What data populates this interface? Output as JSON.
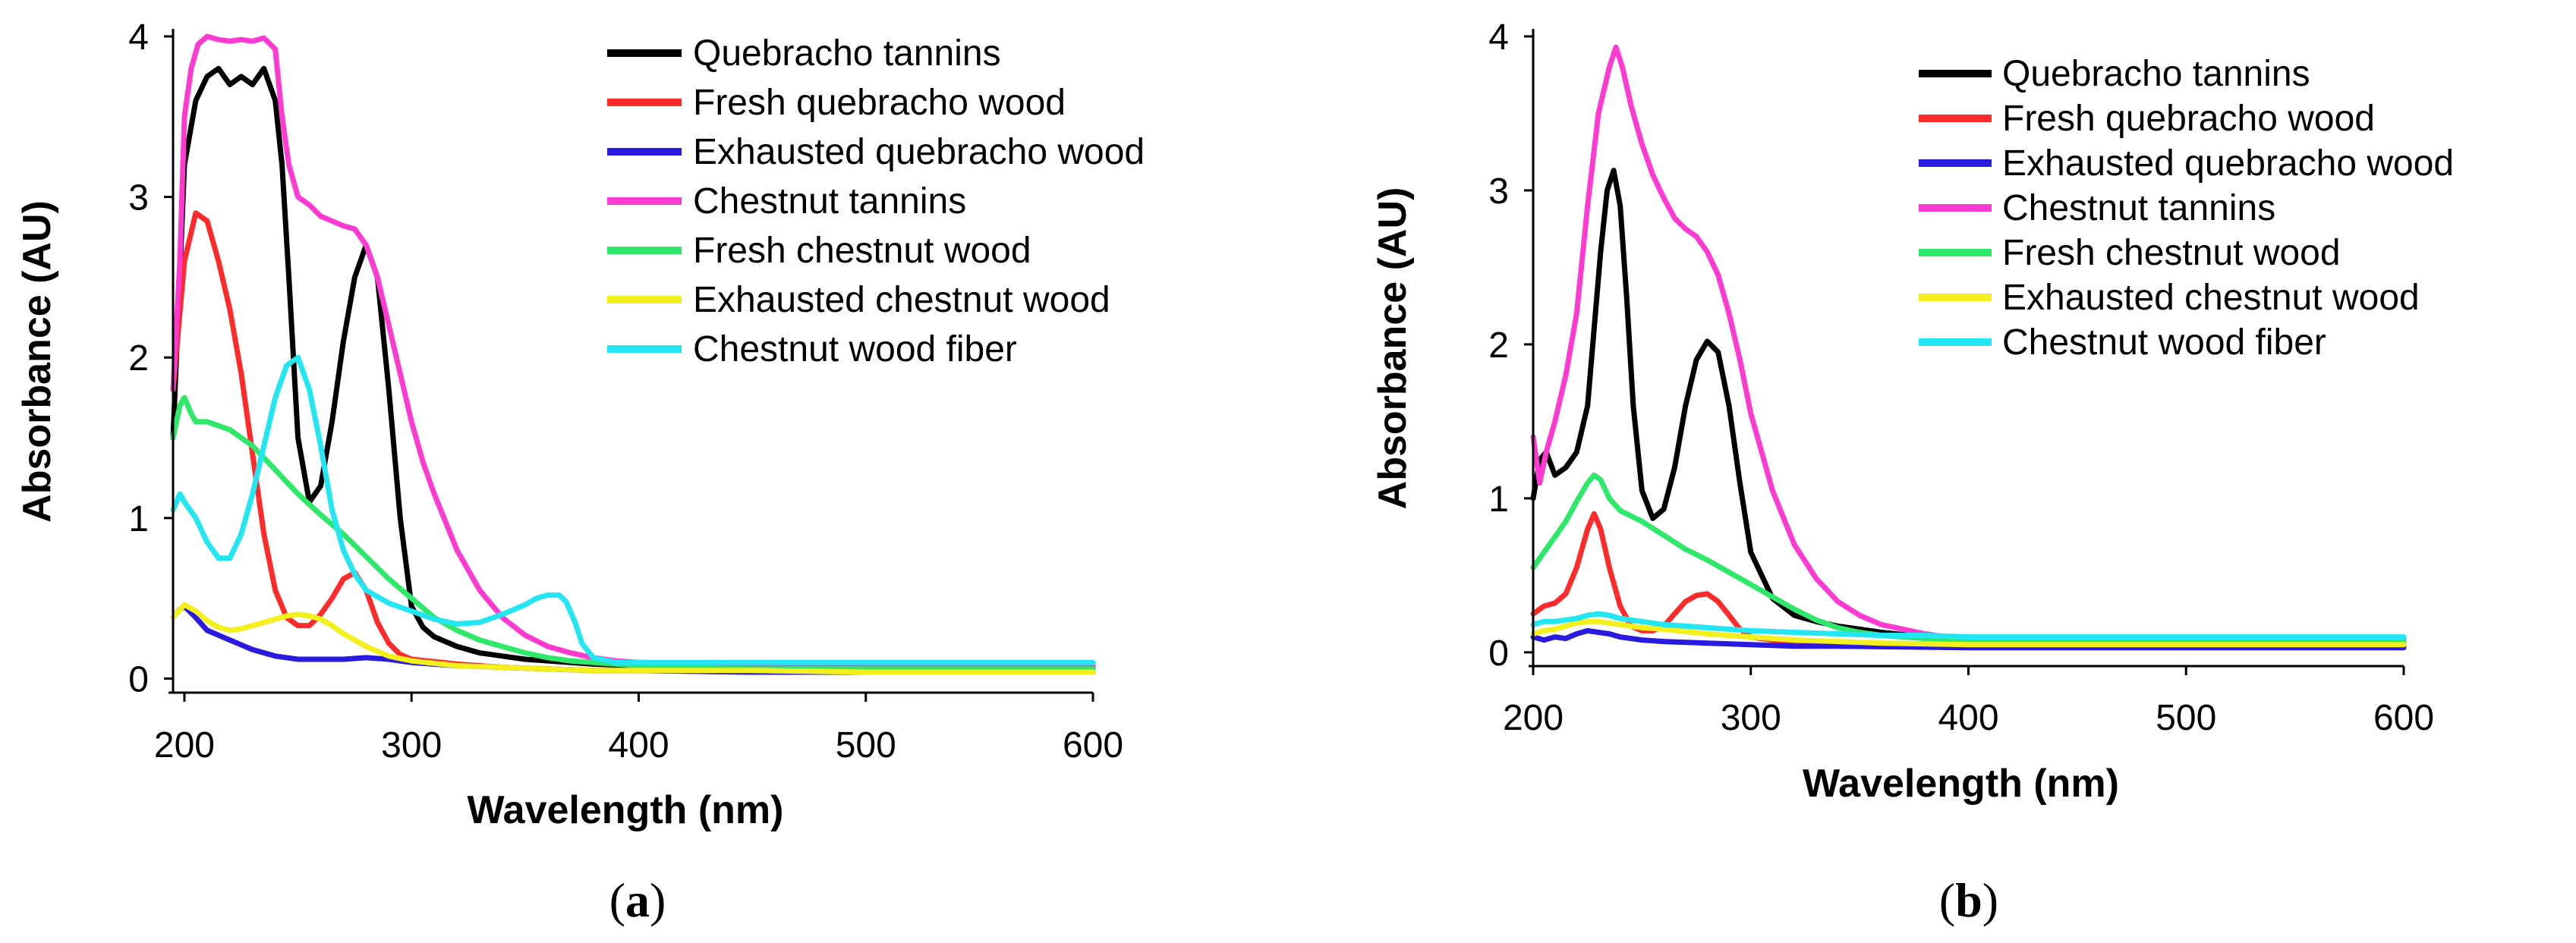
{
  "chart_data": [
    {
      "type": "line",
      "panel_label": {
        "prefix": "(",
        "letter": "a",
        "suffix": ")"
      },
      "xlabel": "Wavelength (nm)",
      "ylabel": "Absorbance (AU)",
      "xlim": [
        195,
        600
      ],
      "ylim": [
        -0.05,
        4
      ],
      "xticks": [
        "200",
        "300",
        "400",
        "500",
        "600"
      ],
      "yticks": [
        "0",
        "1",
        "2",
        "3",
        "4"
      ],
      "grid": false,
      "legend_position": "top-right",
      "series": [
        {
          "name": "Quebracho tannins",
          "color": "#000000",
          "x": [
            195,
            200,
            205,
            210,
            215,
            220,
            225,
            230,
            235,
            240,
            243,
            246,
            250,
            255,
            260,
            265,
            270,
            275,
            280,
            285,
            290,
            295,
            300,
            305,
            310,
            320,
            330,
            340,
            350,
            360,
            370,
            380,
            400,
            450,
            500,
            550,
            600
          ],
          "y": [
            1.5,
            3.2,
            3.6,
            3.75,
            3.8,
            3.7,
            3.75,
            3.7,
            3.8,
            3.6,
            3.2,
            2.5,
            1.5,
            1.1,
            1.2,
            1.6,
            2.1,
            2.5,
            2.7,
            2.5,
            1.8,
            1.0,
            0.45,
            0.32,
            0.26,
            0.2,
            0.16,
            0.14,
            0.12,
            0.11,
            0.1,
            0.09,
            0.08,
            0.07,
            0.07,
            0.07,
            0.07
          ]
        },
        {
          "name": "Fresh quebracho wood",
          "color": "#ff2a2a",
          "x": [
            195,
            200,
            205,
            210,
            215,
            220,
            225,
            230,
            235,
            240,
            245,
            250,
            255,
            260,
            265,
            270,
            275,
            280,
            285,
            290,
            295,
            300,
            320,
            340,
            360,
            380,
            400,
            450,
            500,
            600
          ],
          "y": [
            1.8,
            2.6,
            2.9,
            2.85,
            2.6,
            2.3,
            1.9,
            1.4,
            0.9,
            0.55,
            0.38,
            0.33,
            0.33,
            0.4,
            0.5,
            0.62,
            0.66,
            0.55,
            0.35,
            0.22,
            0.15,
            0.12,
            0.09,
            0.07,
            0.06,
            0.05,
            0.05,
            0.04,
            0.04,
            0.04
          ]
        },
        {
          "name": "Exhausted quebracho wood",
          "color": "#2a1ae0",
          "x": [
            195,
            198,
            200,
            205,
            210,
            220,
            230,
            240,
            250,
            260,
            270,
            280,
            290,
            300,
            320,
            340,
            360,
            380,
            400,
            450,
            500,
            600
          ],
          "y": [
            0.38,
            0.43,
            0.45,
            0.38,
            0.3,
            0.24,
            0.18,
            0.14,
            0.12,
            0.12,
            0.12,
            0.13,
            0.12,
            0.1,
            0.08,
            0.07,
            0.06,
            0.05,
            0.05,
            0.04,
            0.04,
            0.04
          ]
        },
        {
          "name": "Chestnut tannins",
          "color": "#ff3ad2",
          "x": [
            195,
            198,
            200,
            203,
            206,
            210,
            215,
            220,
            225,
            230,
            235,
            240,
            243,
            246,
            250,
            255,
            260,
            265,
            270,
            275,
            280,
            285,
            290,
            295,
            300,
            305,
            310,
            320,
            330,
            340,
            350,
            360,
            370,
            380,
            390,
            400,
            450,
            500,
            600
          ],
          "y": [
            1.8,
            2.6,
            3.5,
            3.8,
            3.95,
            4.0,
            3.98,
            3.97,
            3.98,
            3.97,
            3.99,
            3.92,
            3.5,
            3.2,
            3.0,
            2.95,
            2.88,
            2.85,
            2.82,
            2.8,
            2.7,
            2.5,
            2.2,
            1.9,
            1.6,
            1.35,
            1.15,
            0.8,
            0.55,
            0.38,
            0.27,
            0.2,
            0.16,
            0.13,
            0.11,
            0.1,
            0.08,
            0.08,
            0.08
          ]
        },
        {
          "name": "Fresh chestnut wood",
          "color": "#2ee86a",
          "x": [
            195,
            198,
            200,
            203,
            205,
            210,
            220,
            230,
            240,
            250,
            260,
            270,
            280,
            290,
            300,
            310,
            320,
            330,
            340,
            350,
            360,
            370,
            380,
            400,
            450,
            500,
            600
          ],
          "y": [
            1.5,
            1.7,
            1.75,
            1.65,
            1.6,
            1.6,
            1.55,
            1.45,
            1.3,
            1.15,
            1.02,
            0.9,
            0.76,
            0.62,
            0.5,
            0.38,
            0.3,
            0.24,
            0.2,
            0.16,
            0.13,
            0.11,
            0.1,
            0.08,
            0.06,
            0.06,
            0.06
          ]
        },
        {
          "name": "Exhausted chestnut wood",
          "color": "#f4f01e",
          "x": [
            195,
            200,
            205,
            210,
            215,
            220,
            225,
            230,
            235,
            240,
            245,
            250,
            255,
            260,
            265,
            270,
            280,
            290,
            300,
            320,
            340,
            360,
            380,
            400,
            450,
            500,
            600
          ],
          "y": [
            0.38,
            0.46,
            0.42,
            0.36,
            0.32,
            0.3,
            0.31,
            0.33,
            0.35,
            0.37,
            0.39,
            0.4,
            0.39,
            0.37,
            0.33,
            0.28,
            0.2,
            0.14,
            0.11,
            0.08,
            0.07,
            0.06,
            0.05,
            0.05,
            0.05,
            0.04,
            0.04
          ]
        },
        {
          "name": "Chestnut wood fiber",
          "color": "#22e6f2",
          "x": [
            195,
            198,
            200,
            205,
            210,
            215,
            220,
            225,
            230,
            235,
            240,
            245,
            250,
            255,
            260,
            265,
            270,
            275,
            280,
            290,
            300,
            310,
            320,
            330,
            340,
            350,
            355,
            360,
            365,
            368,
            372,
            375,
            380,
            390,
            400,
            450,
            500,
            600
          ],
          "y": [
            1.05,
            1.15,
            1.1,
            1.0,
            0.85,
            0.75,
            0.75,
            0.9,
            1.15,
            1.45,
            1.75,
            1.95,
            2.0,
            1.8,
            1.45,
            1.05,
            0.8,
            0.65,
            0.55,
            0.47,
            0.42,
            0.37,
            0.34,
            0.35,
            0.4,
            0.46,
            0.5,
            0.52,
            0.52,
            0.48,
            0.35,
            0.22,
            0.13,
            0.1,
            0.1,
            0.1,
            0.1,
            0.1
          ]
        }
      ]
    },
    {
      "type": "line",
      "panel_label": {
        "prefix": "(",
        "letter": "b",
        "suffix": ")"
      },
      "xlabel": "Wavelength (nm)",
      "ylabel": "Absorbance (AU)",
      "xlim": [
        200,
        600
      ],
      "ylim": [
        -0.05,
        4
      ],
      "xticks": [
        "200",
        "300",
        "400",
        "500",
        "600"
      ],
      "yticks": [
        "0",
        "1",
        "2",
        "3",
        "4"
      ],
      "grid": false,
      "legend_position": "top-right",
      "series": [
        {
          "name": "Quebracho tannins",
          "color": "#000000",
          "x": [
            200,
            203,
            206,
            210,
            215,
            220,
            225,
            228,
            231,
            234,
            237,
            240,
            243,
            246,
            250,
            255,
            260,
            265,
            270,
            275,
            280,
            285,
            290,
            295,
            300,
            310,
            320,
            330,
            340,
            350,
            360,
            380,
            400,
            450,
            500,
            600
          ],
          "y": [
            1.0,
            1.25,
            1.3,
            1.15,
            1.2,
            1.3,
            1.6,
            2.1,
            2.6,
            3.0,
            3.13,
            2.9,
            2.3,
            1.6,
            1.05,
            0.87,
            0.93,
            1.2,
            1.6,
            1.9,
            2.02,
            1.95,
            1.6,
            1.1,
            0.65,
            0.35,
            0.24,
            0.2,
            0.17,
            0.15,
            0.13,
            0.1,
            0.08,
            0.06,
            0.05,
            0.05
          ]
        },
        {
          "name": "Fresh quebracho wood",
          "color": "#ff2a2a",
          "x": [
            200,
            205,
            210,
            215,
            220,
            225,
            228,
            231,
            235,
            240,
            245,
            250,
            255,
            260,
            265,
            270,
            275,
            280,
            285,
            290,
            295,
            300,
            320,
            340,
            400,
            450,
            500,
            600
          ],
          "y": [
            0.25,
            0.3,
            0.32,
            0.38,
            0.55,
            0.8,
            0.9,
            0.8,
            0.55,
            0.3,
            0.17,
            0.14,
            0.14,
            0.17,
            0.25,
            0.33,
            0.37,
            0.38,
            0.33,
            0.24,
            0.15,
            0.1,
            0.06,
            0.05,
            0.04,
            0.04,
            0.04,
            0.04
          ]
        },
        {
          "name": "Exhausted quebracho wood",
          "color": "#2a1ae0",
          "x": [
            200,
            205,
            210,
            215,
            220,
            225,
            230,
            235,
            240,
            250,
            260,
            280,
            300,
            320,
            340,
            400,
            450,
            500,
            600
          ],
          "y": [
            0.1,
            0.08,
            0.1,
            0.09,
            0.12,
            0.14,
            0.13,
            0.12,
            0.1,
            0.08,
            0.07,
            0.06,
            0.05,
            0.04,
            0.04,
            0.03,
            0.03,
            0.03,
            0.03
          ]
        },
        {
          "name": "Chestnut tannins",
          "color": "#ff3ad2",
          "x": [
            200,
            203,
            206,
            210,
            215,
            220,
            225,
            230,
            235,
            238,
            241,
            245,
            250,
            255,
            260,
            265,
            270,
            275,
            280,
            285,
            290,
            295,
            300,
            310,
            320,
            330,
            340,
            350,
            360,
            370,
            380,
            390,
            400,
            450,
            500,
            600
          ],
          "y": [
            1.4,
            1.1,
            1.3,
            1.5,
            1.8,
            2.2,
            2.9,
            3.5,
            3.8,
            3.93,
            3.8,
            3.55,
            3.3,
            3.1,
            2.95,
            2.82,
            2.75,
            2.7,
            2.6,
            2.45,
            2.2,
            1.9,
            1.55,
            1.05,
            0.7,
            0.48,
            0.33,
            0.24,
            0.18,
            0.15,
            0.12,
            0.1,
            0.09,
            0.08,
            0.08,
            0.08
          ]
        },
        {
          "name": "Fresh chestnut wood",
          "color": "#2ee86a",
          "x": [
            200,
            205,
            210,
            215,
            220,
            225,
            228,
            231,
            235,
            240,
            250,
            260,
            270,
            280,
            290,
            300,
            310,
            320,
            330,
            340,
            350,
            360,
            380,
            400,
            450,
            500,
            600
          ],
          "y": [
            0.55,
            0.65,
            0.75,
            0.85,
            0.98,
            1.1,
            1.15,
            1.12,
            1.0,
            0.92,
            0.85,
            0.76,
            0.67,
            0.6,
            0.52,
            0.44,
            0.36,
            0.28,
            0.21,
            0.16,
            0.13,
            0.11,
            0.09,
            0.08,
            0.07,
            0.07,
            0.07
          ]
        },
        {
          "name": "Exhausted chestnut wood",
          "color": "#f4f01e",
          "x": [
            200,
            205,
            210,
            215,
            220,
            225,
            230,
            235,
            240,
            250,
            260,
            280,
            300,
            320,
            340,
            360,
            400,
            450,
            500,
            600
          ],
          "y": [
            0.12,
            0.14,
            0.15,
            0.17,
            0.19,
            0.2,
            0.2,
            0.19,
            0.18,
            0.16,
            0.15,
            0.12,
            0.1,
            0.08,
            0.07,
            0.06,
            0.05,
            0.05,
            0.05,
            0.05
          ]
        },
        {
          "name": "Chestnut wood fiber",
          "color": "#22e6f2",
          "x": [
            200,
            205,
            210,
            215,
            220,
            225,
            230,
            235,
            240,
            250,
            260,
            270,
            280,
            290,
            300,
            320,
            340,
            360,
            380,
            400,
            450,
            500,
            600
          ],
          "y": [
            0.18,
            0.2,
            0.2,
            0.21,
            0.22,
            0.24,
            0.25,
            0.24,
            0.22,
            0.2,
            0.18,
            0.17,
            0.16,
            0.15,
            0.14,
            0.13,
            0.12,
            0.11,
            0.11,
            0.1,
            0.1,
            0.1,
            0.1
          ]
        }
      ]
    }
  ]
}
